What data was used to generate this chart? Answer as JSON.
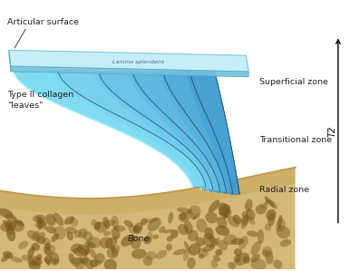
{
  "bg_color": "#ffffff",
  "labels": {
    "articular_surface": "Articular surface",
    "type_ii_collagen": "Type II collagen\n\"leaves\"",
    "lamina": "Lamina splendens",
    "superficial_zone": "Superficial zone",
    "transitional_zone": "Transitional zone",
    "radial_zone": "Radial zone",
    "bone": "Bone",
    "t2_label": "T2"
  },
  "colors": {
    "bone_bg": "#d4b878",
    "bone_rim": "#c09848",
    "bone_dark": "#a07830",
    "pore_color": "#7a5818",
    "blue_bright": "#78d8f0",
    "blue_mid": "#48b8e0",
    "blue_dark": "#1888b8",
    "blue_shadow": "#1070a0",
    "plate_top": "#b8e8f8",
    "plate_bot": "#78c8e8",
    "text_color": "#222222"
  },
  "num_leaves": 6,
  "figsize": [
    3.86,
    2.99
  ],
  "dpi": 100
}
